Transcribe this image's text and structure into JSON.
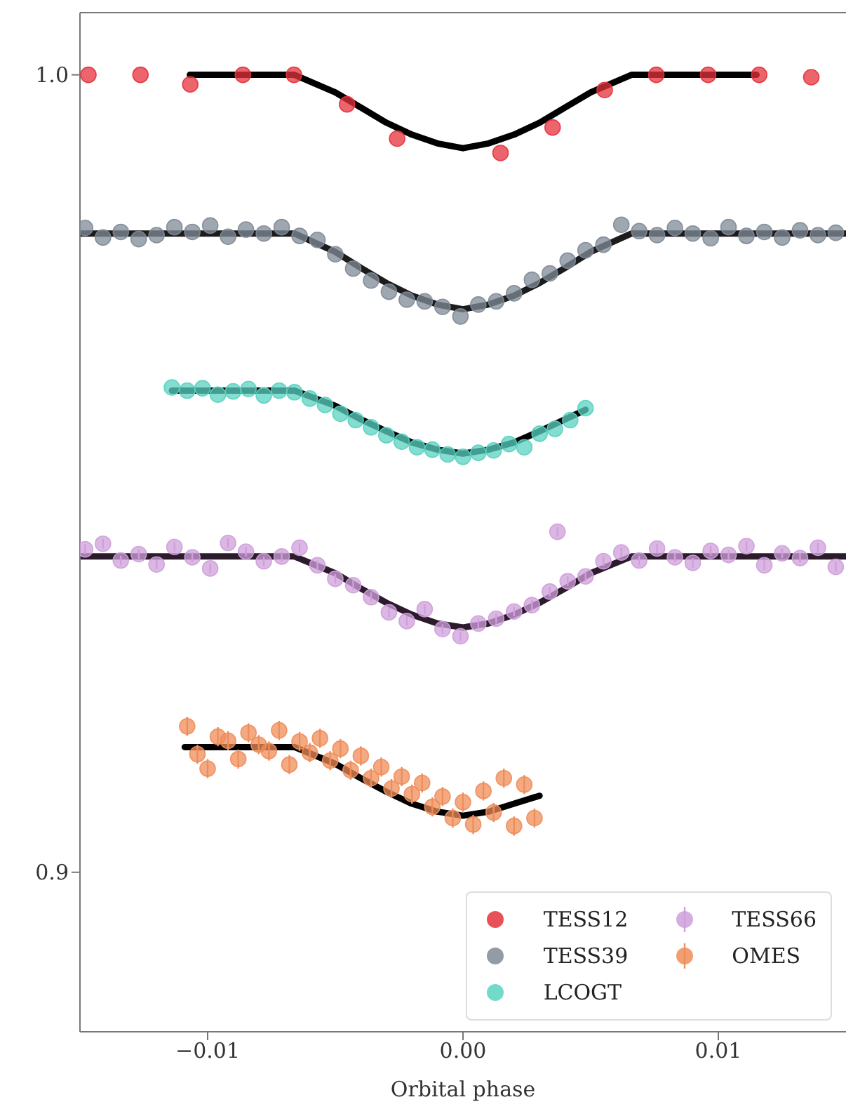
{
  "chart_data": {
    "type": "scatter",
    "xlabel": "Orbital phase",
    "xlim": [
      -0.015,
      0.015
    ],
    "xticks": [
      {
        "value": -0.01,
        "label": "−0.01"
      },
      {
        "value": 0,
        "label": "0.00"
      },
      {
        "value": 0.01,
        "label": "0.01"
      }
    ],
    "ylim": [
      0.88,
      1.0078
    ],
    "yticks": [
      {
        "value": 0.9,
        "label": "0.9"
      },
      {
        "value": 1.0,
        "label": "1.0"
      }
    ],
    "legend": "lower right",
    "series": [
      {
        "name": "TESS12",
        "marker": "circle",
        "color": "#e5323c",
        "x": [
          -0.01467,
          -0.01263,
          -0.01068,
          -0.00862,
          -0.00662,
          -0.00454,
          -0.00258,
          0.00147,
          0.00351,
          0.00555,
          0.00757,
          0.0096,
          0.0116,
          0.01364
        ],
        "values": [
          1.0,
          1.0,
          0.9988,
          1.0,
          1.0,
          0.9963,
          0.992,
          0.9902,
          0.9934,
          0.9981,
          1.0,
          1.0,
          1.0,
          0.9997
        ]
      },
      {
        "name": "TESS39",
        "marker": "circle",
        "color": "#7f8a96",
        "x": [
          -0.0148,
          -0.0141,
          -0.0134,
          -0.0127,
          -0.012,
          -0.0113,
          -0.0106,
          -0.0099,
          -0.0092,
          -0.0085,
          -0.0078,
          -0.0071,
          -0.0064,
          -0.0057,
          -0.005,
          -0.0043,
          -0.0036,
          -0.0029,
          -0.0022,
          -0.0015,
          -0.0008,
          -0.0001,
          0.0006,
          0.0013,
          0.002,
          0.0027,
          0.0034,
          0.0041,
          0.0048,
          0.0055,
          0.0062,
          0.0069,
          0.0076,
          0.0083,
          0.009,
          0.0097,
          0.0104,
          0.0111,
          0.0118,
          0.0125,
          0.0132,
          0.0139,
          0.0146
        ],
        "values": [
          0.9808,
          0.9796,
          0.9803,
          0.9794,
          0.9799,
          0.9809,
          0.9803,
          0.9811,
          0.9797,
          0.9806,
          0.9801,
          0.9809,
          0.9798,
          0.9793,
          0.9775,
          0.9757,
          0.9742,
          0.9728,
          0.9718,
          0.9716,
          0.9709,
          0.9697,
          0.9712,
          0.9716,
          0.9726,
          0.9743,
          0.9751,
          0.9767,
          0.978,
          0.9787,
          0.9812,
          0.9804,
          0.9799,
          0.9808,
          0.9801,
          0.9795,
          0.9809,
          0.9798,
          0.9803,
          0.9796,
          0.9805,
          0.9799,
          0.9802
        ]
      },
      {
        "name": "LCOGT",
        "marker": "circle",
        "color": "#5ad2c0",
        "x": [
          -0.0114,
          -0.0108,
          -0.0102,
          -0.0096,
          -0.009,
          -0.0084,
          -0.0078,
          -0.0072,
          -0.0066,
          -0.006,
          -0.0054,
          -0.0048,
          -0.0042,
          -0.0036,
          -0.003,
          -0.0024,
          -0.0018,
          -0.0012,
          -0.0006,
          0,
          0.0006,
          0.0012,
          0.0018,
          0.0024,
          0.003,
          0.0036,
          0.0042,
          0.0048
        ],
        "values": [
          0.9608,
          0.9604,
          0.9607,
          0.9599,
          0.9603,
          0.9606,
          0.9598,
          0.9604,
          0.9602,
          0.9594,
          0.9586,
          0.9575,
          0.9567,
          0.9558,
          0.9548,
          0.954,
          0.9533,
          0.953,
          0.9524,
          0.9521,
          0.9526,
          0.9529,
          0.9537,
          0.9533,
          0.955,
          0.9556,
          0.9567,
          0.9582
        ]
      },
      {
        "name": "TESS66",
        "marker": "circle",
        "color": "#cf9fdb",
        "x": [
          -0.0148,
          -0.0141,
          -0.0134,
          -0.0127,
          -0.012,
          -0.0113,
          -0.0106,
          -0.0099,
          -0.0092,
          -0.0085,
          -0.0078,
          -0.0071,
          -0.0064,
          -0.0057,
          -0.005,
          -0.0043,
          -0.0036,
          -0.0029,
          -0.0022,
          -0.0015,
          -0.0008,
          -0.0001,
          0.0006,
          0.0013,
          0.002,
          0.0027,
          0.0034,
          0.0041,
          0.0048,
          0.0055,
          0.0062,
          0.0069,
          0.0076,
          0.0083,
          0.009,
          0.0097,
          0.0104,
          0.0111,
          0.0118,
          0.0125,
          0.0132,
          0.0139,
          0.0146,
          0.0037
        ],
        "values": [
          0.9405,
          0.9412,
          0.9391,
          0.9399,
          0.9386,
          0.9408,
          0.9395,
          0.9381,
          0.9413,
          0.9402,
          0.939,
          0.9396,
          0.9407,
          0.9385,
          0.9368,
          0.936,
          0.9345,
          0.9326,
          0.9315,
          0.933,
          0.9305,
          0.9296,
          0.9312,
          0.9318,
          0.9327,
          0.9335,
          0.9352,
          0.9365,
          0.9371,
          0.939,
          0.9401,
          0.9391,
          0.9406,
          0.9395,
          0.9388,
          0.9403,
          0.9398,
          0.9409,
          0.9385,
          0.94,
          0.9394,
          0.9407,
          0.9383,
          0.9427
        ],
        "errors": [
          0.0006,
          0.0006,
          0.0006,
          0.0006,
          0.0006,
          0.0006,
          0.0006,
          0.0006,
          0.0006,
          0.0006,
          0.0006,
          0.0006,
          0.0006,
          0.0006,
          0.0006,
          0.0006,
          0.0006,
          0.0006,
          0.0006,
          0.0006,
          0.0006,
          0.0006,
          0.0006,
          0.0006,
          0.0006,
          0.0006,
          0.0006,
          0.0006,
          0.0006,
          0.0006,
          0.0006,
          0.0006,
          0.0006,
          0.0006,
          0.0006,
          0.0006,
          0.0006,
          0.0006,
          0.0006,
          0.0006,
          0.0006,
          0.0006,
          0.0006,
          0.0006
        ]
      },
      {
        "name": "OMES",
        "marker": "circle",
        "color": "#ef8d5a",
        "x": [
          -0.0108,
          -0.0104,
          -0.01,
          -0.0096,
          -0.0092,
          -0.0088,
          -0.0084,
          -0.008,
          -0.0076,
          -0.0072,
          -0.0068,
          -0.0064,
          -0.006,
          -0.0056,
          -0.0052,
          -0.0048,
          -0.0044,
          -0.004,
          -0.0036,
          -0.0032,
          -0.0028,
          -0.0024,
          -0.002,
          -0.0016,
          -0.0012,
          -0.0008,
          -0.0004,
          0,
          0.0004,
          0.0008,
          0.0012,
          0.0016,
          0.002,
          0.0024,
          0.0028
        ],
        "values": [
          0.9183,
          0.9148,
          0.913,
          0.917,
          0.9165,
          0.9142,
          0.9175,
          0.916,
          0.9152,
          0.9178,
          0.9135,
          0.9164,
          0.915,
          0.9168,
          0.914,
          0.9155,
          0.9128,
          0.9146,
          0.9118,
          0.9132,
          0.9105,
          0.912,
          0.9098,
          0.9112,
          0.9082,
          0.9095,
          0.9068,
          0.9088,
          0.906,
          0.9102,
          0.9075,
          0.9118,
          0.9058,
          0.911,
          0.9068
        ],
        "errors": [
          0.0012,
          0.0012,
          0.0012,
          0.0012,
          0.0012,
          0.0012,
          0.0012,
          0.0012,
          0.0012,
          0.0012,
          0.0012,
          0.0012,
          0.0012,
          0.0012,
          0.0012,
          0.0012,
          0.0012,
          0.0012,
          0.0012,
          0.0012,
          0.0012,
          0.0012,
          0.0012,
          0.0012,
          0.0012,
          0.0012,
          0.0012,
          0.0012,
          0.0012,
          0.0012,
          0.0012,
          0.0012,
          0.0012,
          0.0012,
          0.0012
        ]
      },
      {
        "type": "line",
        "marker": "none",
        "color": "#000000",
        "x": [
          -0.0107,
          -0.0066,
          -0.005,
          -0.004,
          -0.003,
          -0.002,
          -0.001,
          0,
          0.001,
          0.002,
          0.003,
          0.004,
          0.005,
          0.0066,
          0.0115
        ],
        "values": [
          1.0,
          1.0,
          0.9978,
          0.9959,
          0.994,
          0.9925,
          0.9914,
          0.9908,
          0.9914,
          0.9925,
          0.994,
          0.9959,
          0.9978,
          1.0,
          1.0
        ]
      },
      {
        "type": "line",
        "marker": "none",
        "color": "#1c1c1c",
        "x": [
          -0.015,
          -0.0066,
          -0.005,
          -0.004,
          -0.003,
          -0.002,
          -0.001,
          0,
          0.001,
          0.002,
          0.003,
          0.004,
          0.005,
          0.0066,
          0.015
        ],
        "values": [
          0.9801,
          0.9801,
          0.9778,
          0.9758,
          0.9739,
          0.9723,
          0.9712,
          0.9706,
          0.9712,
          0.9723,
          0.9739,
          0.9758,
          0.9778,
          0.9801,
          0.9801
        ]
      },
      {
        "type": "line",
        "marker": "none",
        "color": "#000000",
        "x": [
          -0.0114,
          -0.0066,
          -0.005,
          -0.004,
          -0.003,
          -0.002,
          -0.001,
          0,
          0.001,
          0.002,
          0.003,
          0.004,
          0.0048
        ],
        "values": [
          0.9604,
          0.9604,
          0.9585,
          0.9568,
          0.9553,
          0.9539,
          0.953,
          0.9525,
          0.953,
          0.9539,
          0.9553,
          0.9568,
          0.958
        ]
      },
      {
        "type": "line",
        "marker": "none",
        "color": "#2b1b2b",
        "x": [
          -0.015,
          -0.0066,
          -0.005,
          -0.004,
          -0.003,
          -0.002,
          -0.001,
          0,
          0.001,
          0.002,
          0.003,
          0.004,
          0.005,
          0.0066,
          0.015
        ],
        "values": [
          0.9396,
          0.9396,
          0.9375,
          0.9356,
          0.9338,
          0.9323,
          0.9312,
          0.9307,
          0.9312,
          0.9323,
          0.9338,
          0.9356,
          0.9375,
          0.9396,
          0.9396
        ]
      },
      {
        "type": "line",
        "marker": "none",
        "color": "#000000",
        "x": [
          -0.0109,
          -0.0066,
          -0.005,
          -0.004,
          -0.003,
          -0.002,
          -0.001,
          0,
          0.001,
          0.002,
          0.003
        ],
        "values": [
          0.9157,
          0.9157,
          0.9136,
          0.9118,
          0.9101,
          0.9086,
          0.9076,
          0.9071,
          0.9076,
          0.9086,
          0.9096
        ]
      }
    ]
  }
}
